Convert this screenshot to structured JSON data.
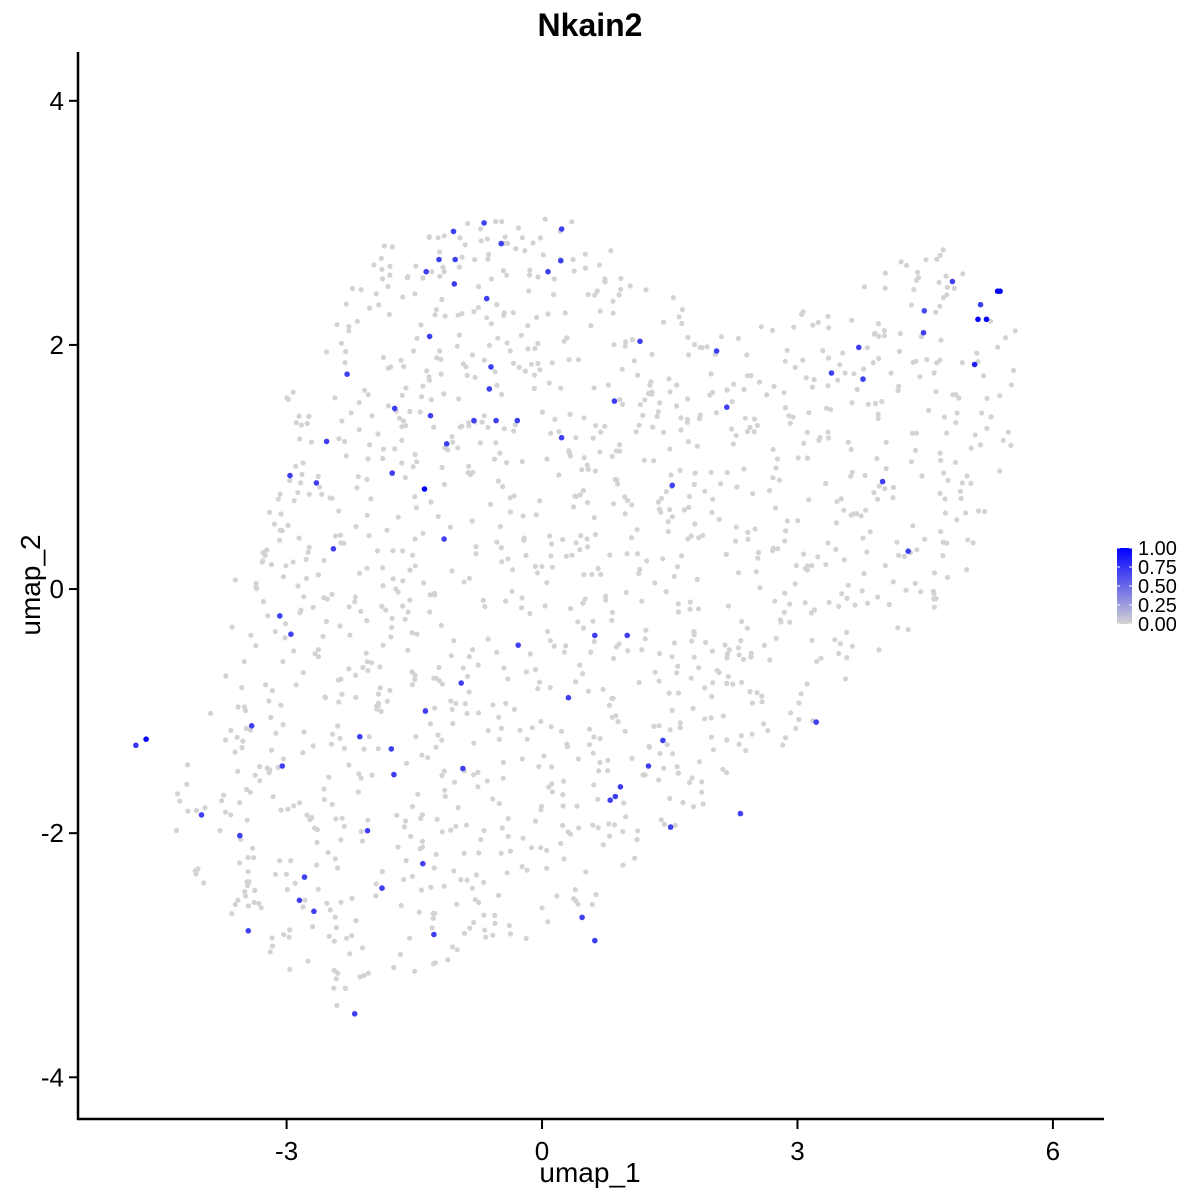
{
  "chart_data": {
    "type": "scatter",
    "title": "Nkain2",
    "xlabel": "umap_1",
    "ylabel": "umap_2",
    "xlim": [
      -5.45,
      6.6
    ],
    "ylim": [
      -4.35,
      4.4
    ],
    "xticks": [
      -3,
      0,
      3,
      6
    ],
    "yticks": [
      -4,
      -2,
      0,
      2,
      4
    ],
    "xtick_labels": [
      "-3",
      "0",
      "3",
      "6"
    ],
    "ytick_labels": [
      "-4",
      "-2",
      "0",
      "2",
      "4"
    ],
    "grid": false,
    "legend": {
      "placement": "right",
      "type": "colorbar",
      "low_color": "#d3d3d3",
      "high_color": "#0000ff",
      "range": [
        0,
        1
      ],
      "labels": [
        "1.00",
        "0.75",
        "0.50",
        "0.25",
        "0.00"
      ],
      "values": [
        1.0,
        0.75,
        0.5,
        0.25,
        0.0
      ]
    },
    "background_cloud": {
      "color": "#d3d3d3",
      "value": 0,
      "approx_count": 1400,
      "outline": [
        [
          -4.35,
          -1.8
        ],
        [
          -4.1,
          -1.3
        ],
        [
          -3.7,
          -0.6
        ],
        [
          -3.6,
          0.1
        ],
        [
          -3.2,
          0.9
        ],
        [
          -3.0,
          1.6
        ],
        [
          -2.6,
          2.1
        ],
        [
          -2.2,
          2.6
        ],
        [
          -1.8,
          2.9
        ],
        [
          -1.0,
          3.0
        ],
        [
          0.2,
          3.1
        ],
        [
          1.0,
          2.8
        ],
        [
          1.6,
          2.4
        ],
        [
          2.0,
          2.1
        ],
        [
          2.7,
          2.2
        ],
        [
          3.3,
          2.4
        ],
        [
          3.9,
          2.6
        ],
        [
          4.3,
          2.8
        ],
        [
          4.7,
          2.8
        ],
        [
          5.2,
          2.4
        ],
        [
          5.6,
          2.1
        ],
        [
          5.5,
          1.0
        ],
        [
          5.2,
          0.4
        ],
        [
          4.8,
          -0.1
        ],
        [
          4.2,
          -0.4
        ],
        [
          3.8,
          -0.7
        ],
        [
          3.2,
          -1.1
        ],
        [
          2.6,
          -1.4
        ],
        [
          2.0,
          -1.7
        ],
        [
          1.3,
          -2.1
        ],
        [
          0.6,
          -2.6
        ],
        [
          0.0,
          -2.9
        ],
        [
          -0.9,
          -3.0
        ],
        [
          -1.8,
          -3.2
        ],
        [
          -2.4,
          -3.5
        ],
        [
          -3.0,
          -3.1
        ],
        [
          -3.5,
          -2.8
        ],
        [
          -4.2,
          -2.4
        ]
      ]
    },
    "points": [
      {
        "x": -4.65,
        "y": -1.23,
        "value": 1.0
      },
      {
        "x": -4.77,
        "y": -1.28,
        "value": 0.75
      },
      {
        "x": 5.12,
        "y": 2.21,
        "value": 1.0
      },
      {
        "x": 5.22,
        "y": 2.21,
        "value": 1.0
      },
      {
        "x": 5.35,
        "y": 2.44,
        "value": 1.0
      },
      {
        "x": 5.38,
        "y": 2.44,
        "value": 1.0
      },
      {
        "x": 5.08,
        "y": 1.84,
        "value": 0.85
      },
      {
        "x": 5.15,
        "y": 2.33,
        "value": 0.7
      },
      {
        "x": 4.82,
        "y": 2.52,
        "value": 0.7
      },
      {
        "x": 4.49,
        "y": 2.28,
        "value": 0.65
      },
      {
        "x": -1.38,
        "y": 0.82,
        "value": 1.0
      },
      {
        "x": -0.68,
        "y": 3.0,
        "value": 0.7
      },
      {
        "x": -1.04,
        "y": 2.93,
        "value": 0.7
      },
      {
        "x": 0.23,
        "y": 2.95,
        "value": 0.7
      },
      {
        "x": -0.48,
        "y": 2.83,
        "value": 0.7
      },
      {
        "x": -1.21,
        "y": 2.7,
        "value": 0.7
      },
      {
        "x": -1.02,
        "y": 2.7,
        "value": 0.7
      },
      {
        "x": -1.36,
        "y": 2.6,
        "value": 0.7
      },
      {
        "x": 0.07,
        "y": 2.6,
        "value": 0.7
      },
      {
        "x": 0.22,
        "y": 2.69,
        "value": 0.7
      },
      {
        "x": -1.03,
        "y": 2.5,
        "value": 0.7
      },
      {
        "x": -0.65,
        "y": 2.38,
        "value": 0.7
      },
      {
        "x": -1.32,
        "y": 2.07,
        "value": 0.7
      },
      {
        "x": 1.15,
        "y": 2.03,
        "value": 0.7
      },
      {
        "x": 2.05,
        "y": 1.95,
        "value": 0.7
      },
      {
        "x": 3.72,
        "y": 1.98,
        "value": 0.7
      },
      {
        "x": 4.48,
        "y": 2.1,
        "value": 0.7
      },
      {
        "x": 3.4,
        "y": 1.77,
        "value": 0.7
      },
      {
        "x": 3.77,
        "y": 1.72,
        "value": 0.7
      },
      {
        "x": -0.6,
        "y": 1.82,
        "value": 0.7
      },
      {
        "x": -2.29,
        "y": 1.76,
        "value": 0.7
      },
      {
        "x": -0.62,
        "y": 1.64,
        "value": 0.7
      },
      {
        "x": -1.73,
        "y": 1.48,
        "value": 0.7
      },
      {
        "x": 0.85,
        "y": 1.54,
        "value": 0.7
      },
      {
        "x": 2.17,
        "y": 1.49,
        "value": 0.7
      },
      {
        "x": -1.31,
        "y": 1.42,
        "value": 0.7
      },
      {
        "x": -0.8,
        "y": 1.38,
        "value": 0.7
      },
      {
        "x": -0.54,
        "y": 1.38,
        "value": 0.7
      },
      {
        "x": -0.29,
        "y": 1.38,
        "value": 0.7
      },
      {
        "x": -2.53,
        "y": 1.21,
        "value": 0.7
      },
      {
        "x": -1.12,
        "y": 1.19,
        "value": 0.7
      },
      {
        "x": 0.23,
        "y": 1.24,
        "value": 0.7
      },
      {
        "x": -2.96,
        "y": 0.93,
        "value": 0.7
      },
      {
        "x": -1.76,
        "y": 0.95,
        "value": 0.7
      },
      {
        "x": -2.65,
        "y": 0.87,
        "value": 0.7
      },
      {
        "x": 1.53,
        "y": 0.85,
        "value": 0.7
      },
      {
        "x": 4.0,
        "y": 0.88,
        "value": 0.7
      },
      {
        "x": -1.15,
        "y": 0.41,
        "value": 0.7
      },
      {
        "x": -2.45,
        "y": 0.33,
        "value": 0.7
      },
      {
        "x": 4.3,
        "y": 0.31,
        "value": 0.7
      },
      {
        "x": -3.08,
        "y": -0.22,
        "value": 0.7
      },
      {
        "x": -2.95,
        "y": -0.37,
        "value": 0.7
      },
      {
        "x": 0.62,
        "y": -0.38,
        "value": 0.7
      },
      {
        "x": 1.0,
        "y": -0.38,
        "value": 0.7
      },
      {
        "x": -0.28,
        "y": -0.46,
        "value": 0.7
      },
      {
        "x": -0.95,
        "y": -0.77,
        "value": 0.7
      },
      {
        "x": 0.31,
        "y": -0.89,
        "value": 0.7
      },
      {
        "x": -1.37,
        "y": -1.0,
        "value": 0.7
      },
      {
        "x": 3.22,
        "y": -1.09,
        "value": 0.7
      },
      {
        "x": -3.41,
        "y": -1.12,
        "value": 0.7
      },
      {
        "x": -2.14,
        "y": -1.21,
        "value": 0.7
      },
      {
        "x": 1.42,
        "y": -1.24,
        "value": 0.7
      },
      {
        "x": -1.77,
        "y": -1.31,
        "value": 0.7
      },
      {
        "x": -3.05,
        "y": -1.45,
        "value": 0.7
      },
      {
        "x": -0.93,
        "y": -1.47,
        "value": 0.7
      },
      {
        "x": 1.25,
        "y": -1.45,
        "value": 0.7
      },
      {
        "x": -1.74,
        "y": -1.52,
        "value": 0.7
      },
      {
        "x": 0.92,
        "y": -1.62,
        "value": 0.7
      },
      {
        "x": 0.86,
        "y": -1.7,
        "value": 0.7
      },
      {
        "x": 0.8,
        "y": -1.73,
        "value": 0.7
      },
      {
        "x": 2.33,
        "y": -1.84,
        "value": 0.7
      },
      {
        "x": -4.0,
        "y": -1.85,
        "value": 0.7
      },
      {
        "x": 1.51,
        "y": -1.95,
        "value": 0.7
      },
      {
        "x": -2.05,
        "y": -1.98,
        "value": 0.7
      },
      {
        "x": -3.55,
        "y": -2.02,
        "value": 0.7
      },
      {
        "x": -1.4,
        "y": -2.25,
        "value": 0.7
      },
      {
        "x": -2.79,
        "y": -2.36,
        "value": 0.7
      },
      {
        "x": -1.88,
        "y": -2.45,
        "value": 0.7
      },
      {
        "x": -2.85,
        "y": -2.55,
        "value": 0.7
      },
      {
        "x": -2.68,
        "y": -2.64,
        "value": 0.7
      },
      {
        "x": 0.47,
        "y": -2.69,
        "value": 0.7
      },
      {
        "x": -3.45,
        "y": -2.8,
        "value": 0.7
      },
      {
        "x": -1.27,
        "y": -2.83,
        "value": 0.7
      },
      {
        "x": 0.62,
        "y": -2.88,
        "value": 0.7
      },
      {
        "x": -2.2,
        "y": -3.48,
        "value": 0.7
      }
    ]
  }
}
